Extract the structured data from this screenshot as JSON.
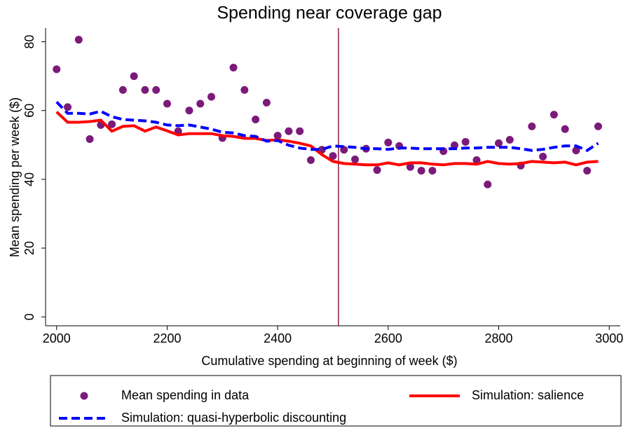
{
  "chart_data": {
    "type": "line",
    "title": "Spending near coverage gap",
    "xlabel": "Cumulative spending at beginning of week ($)",
    "ylabel": "Mean spending per week ($)",
    "xlim": [
      1980,
      3020
    ],
    "ylim": [
      -2.6,
      84
    ],
    "xticks": [
      2000,
      2200,
      2400,
      2600,
      2800,
      3000
    ],
    "yticks": [
      0,
      20,
      40,
      60,
      80
    ],
    "vline": 2510,
    "vline_color": "#8b1a4a",
    "x": [
      2000,
      2020,
      2040,
      2060,
      2080,
      2100,
      2120,
      2140,
      2160,
      2180,
      2200,
      2220,
      2240,
      2260,
      2280,
      2300,
      2320,
      2340,
      2360,
      2380,
      2400,
      2420,
      2440,
      2460,
      2480,
      2500,
      2520,
      2540,
      2560,
      2580,
      2600,
      2620,
      2640,
      2660,
      2680,
      2700,
      2720,
      2740,
      2760,
      2780,
      2800,
      2820,
      2840,
      2860,
      2880,
      2900,
      2920,
      2940,
      2960,
      2980
    ],
    "series": [
      {
        "name": "Mean spending in data",
        "kind": "scatter",
        "color": "#7b1a7b",
        "values": [
          72,
          61,
          80.6,
          51.7,
          55.8,
          56,
          66,
          70,
          66,
          66,
          62,
          54,
          60,
          62,
          64,
          52,
          72.5,
          66,
          57.4,
          62.3,
          52.7,
          54,
          54,
          45.6,
          48.6,
          46.8,
          48.6,
          45.8,
          48.9,
          42.7,
          50.7,
          49.7,
          43.6,
          42.5,
          42.5,
          48.2,
          49.9,
          50.9,
          45.6,
          38.5,
          50.5,
          51.5,
          44,
          55.4,
          46.6,
          58.8,
          54.6,
          48.4,
          42.5,
          55.4
        ]
      },
      {
        "name": "Simulation: salience",
        "kind": "line",
        "dash": false,
        "color": "#ff0000",
        "values": [
          59.6,
          56.6,
          56.6,
          56.8,
          57.2,
          54,
          55.4,
          55.6,
          54,
          55.2,
          54.1,
          52.9,
          53.3,
          53.3,
          53.3,
          52.7,
          52.5,
          51.9,
          51.9,
          51.3,
          51.5,
          51.1,
          50.5,
          49.7,
          47.2,
          45.2,
          44.6,
          44.4,
          44.2,
          44.2,
          44.8,
          44.2,
          44.8,
          44.8,
          44.4,
          44.2,
          44.6,
          44.6,
          44.4,
          45.2,
          44.6,
          44.4,
          44.6,
          45.2,
          45,
          44.8,
          45,
          44.2,
          45,
          45.2
        ]
      },
      {
        "name": "Simulation: quasi-hyperbolic discounting",
        "kind": "line",
        "dash": true,
        "color": "#0000ff",
        "values": [
          62.5,
          59.2,
          59.2,
          59,
          59.8,
          58.2,
          57.4,
          57.2,
          57,
          56.6,
          55.8,
          55.6,
          55.8,
          55.2,
          54.6,
          53.7,
          53.5,
          52.7,
          52.5,
          51.1,
          51.3,
          49.9,
          49.1,
          48.7,
          48.7,
          49.7,
          49.5,
          49.3,
          48.9,
          48.9,
          48.7,
          49.1,
          49.1,
          48.9,
          48.9,
          48.9,
          48.9,
          49.1,
          49.1,
          49.3,
          49.3,
          49.3,
          48.9,
          48.4,
          48.7,
          49.3,
          49.7,
          49.7,
          48.4,
          50.5
        ]
      }
    ]
  }
}
